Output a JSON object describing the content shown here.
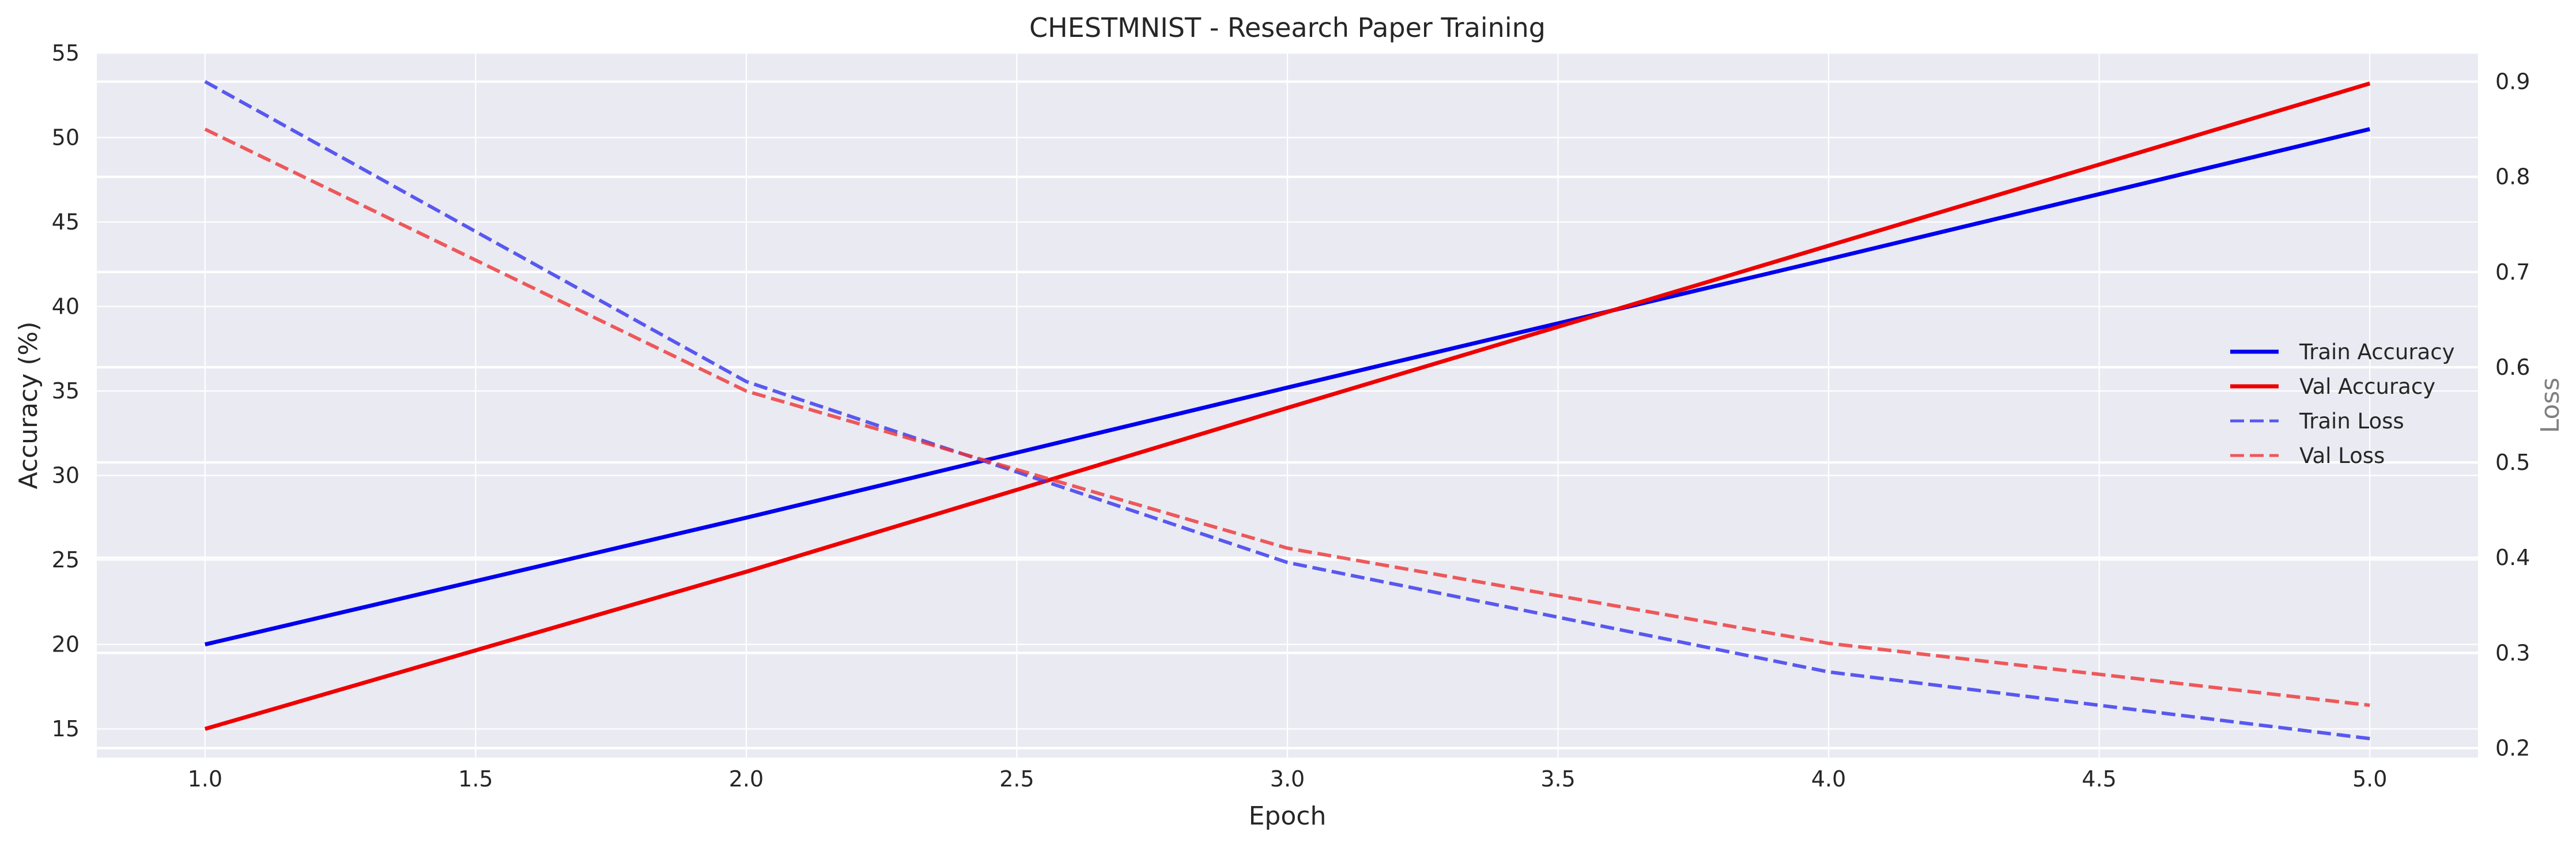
{
  "chart_data": {
    "type": "line",
    "title": "CHESTMNIST - Research Paper Training",
    "xlabel": "Epoch",
    "ylabel": "Accuracy (%)",
    "y2label": "Loss",
    "x": [
      1.0,
      2.0,
      3.0,
      4.0,
      5.0
    ],
    "xlim": [
      0.8,
      5.2
    ],
    "xticks": [
      "1.0",
      "1.5",
      "2.0",
      "2.5",
      "3.0",
      "3.5",
      "4.0",
      "4.5",
      "5.0"
    ],
    "ylim": [
      13.3,
      55.0
    ],
    "yticks": [
      "15",
      "20",
      "25",
      "30",
      "35",
      "40",
      "45",
      "50",
      "55"
    ],
    "y2lim": [
      0.19,
      0.93
    ],
    "y2ticks": [
      "0.2",
      "0.3",
      "0.4",
      "0.5",
      "0.6",
      "0.7",
      "0.8",
      "0.9"
    ],
    "grid": true,
    "legend_position": "center-right",
    "series": [
      {
        "name": "Train Accuracy",
        "axis": "left",
        "style": "solid",
        "color": "#0000ee",
        "values": [
          20.0,
          27.5,
          35.2,
          42.8,
          50.5
        ]
      },
      {
        "name": "Val Accuracy",
        "axis": "left",
        "style": "solid",
        "color": "#ee0000",
        "values": [
          15.0,
          24.3,
          34.0,
          43.6,
          53.2
        ]
      },
      {
        "name": "Train Loss",
        "axis": "right",
        "style": "dashed",
        "color": "#3333ee",
        "values": [
          0.9,
          0.585,
          0.395,
          0.28,
          0.21
        ]
      },
      {
        "name": "Val Loss",
        "axis": "right",
        "style": "dashed",
        "color": "#ee3333",
        "values": [
          0.85,
          0.575,
          0.41,
          0.31,
          0.245
        ]
      }
    ]
  }
}
